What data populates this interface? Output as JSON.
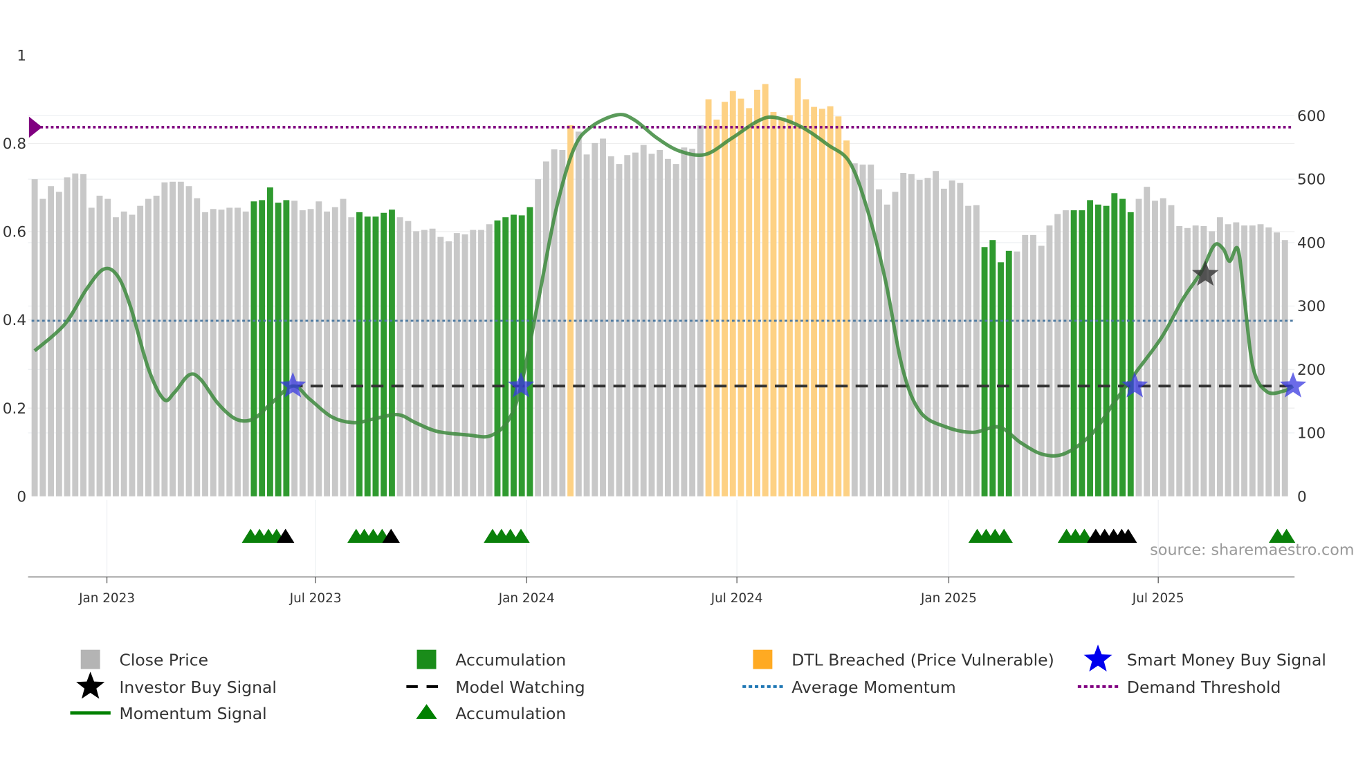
{
  "chart_data": {
    "type": "bar",
    "title": "",
    "source": "source: sharemaestro.com",
    "left_axis": {
      "ticks": [
        "0",
        "0.2",
        "0.4",
        "0.6",
        "0.8",
        "1"
      ],
      "values": [
        0,
        0.2,
        0.4,
        0.6,
        0.8,
        1
      ],
      "range": [
        0,
        1
      ]
    },
    "right_axis": {
      "ticks": [
        "0",
        "100",
        "200",
        "300",
        "400",
        "500",
        "600"
      ],
      "values": [
        0,
        100,
        200,
        300,
        400,
        500,
        600
      ],
      "range": [
        0,
        695
      ]
    },
    "x_ticks": [
      {
        "label": "Jan 2023",
        "week": 8.9
      },
      {
        "label": "Jul 2023",
        "week": 34.6
      },
      {
        "label": "Jan 2024",
        "week": 60.6
      },
      {
        "label": "Jul 2024",
        "week": 86.5
      },
      {
        "label": "Jan 2025",
        "week": 112.6
      },
      {
        "label": "Jul 2025",
        "week": 138.4
      }
    ],
    "close_price": [
      500,
      469,
      489,
      480,
      503,
      509,
      508,
      455,
      474,
      469,
      440,
      449,
      444,
      458,
      469,
      474,
      495,
      496,
      496,
      489,
      470,
      448,
      453,
      452,
      455,
      455,
      449,
      465,
      467,
      487,
      463,
      467,
      466,
      451,
      453,
      465,
      449,
      456,
      469,
      440,
      448,
      441,
      441,
      447,
      452,
      440,
      434,
      418,
      420,
      422,
      409,
      402,
      415,
      413,
      420,
      420,
      429,
      435,
      440,
      444,
      443,
      456,
      500,
      528,
      547,
      546,
      585,
      575,
      539,
      557,
      564,
      536,
      524,
      538,
      542,
      554,
      540,
      546,
      532,
      524,
      550,
      548,
      585,
      626,
      594,
      622,
      639,
      627,
      612,
      641,
      650,
      606,
      597,
      601,
      659,
      626,
      614,
      611,
      615,
      599,
      561,
      525,
      523,
      523,
      484,
      460,
      480,
      510,
      508,
      499,
      502,
      513,
      485,
      498,
      494,
      458,
      459,
      393,
      404,
      369,
      387,
      386,
      412,
      412,
      395,
      427,
      445,
      451,
      451,
      451,
      467,
      460,
      458,
      478,
      469,
      448,
      469,
      488,
      466,
      470,
      459,
      426,
      423,
      427,
      426,
      418,
      440,
      429,
      432,
      427,
      427,
      429,
      424,
      416,
      404
    ],
    "bar_status": "gggggggggggggggggggggggggggaaaaaggggggggaaaaaggggggggggggaaaaaggggoggggggggggggggggooooooooooooooooooggggggggggggggggaaaagggggggaaaaaaaagggggggggggggggggggaag",
    "status_colors": {
      "g": "#c8c8c8",
      "a": "#2f9a2f",
      "o": "#fdd184"
    },
    "momentum": [
      [
        0,
        0.33
      ],
      [
        3.7,
        0.39
      ],
      [
        6.4,
        0.47
      ],
      [
        8.5,
        0.515
      ],
      [
        10.2,
        0.5
      ],
      [
        11.8,
        0.43
      ],
      [
        14,
        0.29
      ],
      [
        15.9,
        0.22
      ],
      [
        17.2,
        0.235
      ],
      [
        19,
        0.275
      ],
      [
        20.4,
        0.266
      ],
      [
        22.6,
        0.21
      ],
      [
        24.8,
        0.175
      ],
      [
        26.9,
        0.175
      ],
      [
        29.1,
        0.21
      ],
      [
        31.8,
        0.25
      ],
      [
        33.9,
        0.22
      ],
      [
        36.6,
        0.18
      ],
      [
        39.4,
        0.167
      ],
      [
        42.1,
        0.177
      ],
      [
        44.8,
        0.185
      ],
      [
        46.9,
        0.167
      ],
      [
        49.6,
        0.147
      ],
      [
        53.4,
        0.139
      ],
      [
        56.1,
        0.137
      ],
      [
        58.3,
        0.171
      ],
      [
        59.9,
        0.25
      ],
      [
        62.1,
        0.45
      ],
      [
        64.2,
        0.648
      ],
      [
        66.4,
        0.787
      ],
      [
        68.5,
        0.837
      ],
      [
        71.8,
        0.865
      ],
      [
        73.9,
        0.853
      ],
      [
        76.6,
        0.813
      ],
      [
        79.4,
        0.783
      ],
      [
        82.6,
        0.775
      ],
      [
        85.8,
        0.811
      ],
      [
        89.1,
        0.851
      ],
      [
        91.2,
        0.859
      ],
      [
        94.5,
        0.837
      ],
      [
        97.7,
        0.797
      ],
      [
        100.4,
        0.757
      ],
      [
        102.6,
        0.648
      ],
      [
        104.8,
        0.489
      ],
      [
        106.9,
        0.29
      ],
      [
        109.1,
        0.191
      ],
      [
        112.3,
        0.157
      ],
      [
        115.6,
        0.145
      ],
      [
        118.8,
        0.157
      ],
      [
        121.5,
        0.121
      ],
      [
        124.2,
        0.095
      ],
      [
        126.9,
        0.097
      ],
      [
        130.2,
        0.141
      ],
      [
        132.9,
        0.211
      ],
      [
        135.6,
        0.28
      ],
      [
        138.8,
        0.36
      ],
      [
        141.5,
        0.449
      ],
      [
        143.7,
        0.509
      ],
      [
        145.3,
        0.569
      ],
      [
        146.4,
        0.561
      ],
      [
        147.2,
        0.533
      ],
      [
        148.2,
        0.561
      ],
      [
        149,
        0.449
      ],
      [
        150.1,
        0.29
      ],
      [
        151.8,
        0.237
      ],
      [
        153.9,
        0.239
      ],
      [
        155,
        0.25
      ]
    ],
    "demand_threshold": 0.837,
    "average_momentum": 0.398,
    "model_watching": {
      "value": 0.25,
      "from_week": 31.5,
      "to_week": 155
    },
    "smart_money_buy": [
      [
        31.8,
        0.25
      ],
      [
        59.9,
        0.25
      ],
      [
        135.5,
        0.25
      ],
      [
        155,
        0.25
      ]
    ],
    "investor_buy": [
      [
        144.2,
        0.503
      ]
    ],
    "accumulation_triangles": [
      26.6,
      27.7,
      28.8,
      29.8,
      39.6,
      40.6,
      41.7,
      42.8,
      56.4,
      57.5,
      58.6,
      59.9,
      116.1,
      117.2,
      118.3,
      119.4,
      127.1,
      128.2,
      129.3,
      153.1,
      154.2
    ],
    "investor_triangles": [
      30.9,
      43.9,
      130.7,
      131.8,
      132.9,
      133.9,
      134.7
    ],
    "legend": [
      {
        "label": "Close Price",
        "icon": "square",
        "color": "#b4b4b4"
      },
      {
        "label": "Accumulation",
        "icon": "square",
        "color": "#1a8c1a"
      },
      {
        "label": "DTL Breached (Price Vulnerable)",
        "icon": "square",
        "color": "#ffaa22"
      },
      {
        "label": "Smart Money Buy Signal",
        "icon": "star",
        "color": "#0000ee"
      },
      {
        "label": "Investor Buy Signal",
        "icon": "star",
        "color": "#000000"
      },
      {
        "label": "Model Watching",
        "icon": "dash",
        "color": "#000000"
      },
      {
        "label": "Average Momentum",
        "icon": "dot",
        "color": "#1f77b4"
      },
      {
        "label": "Demand Threshold",
        "icon": "dot",
        "color": "#800080"
      },
      {
        "label": "Momentum Signal",
        "icon": "line",
        "color": "#008000"
      },
      {
        "label": "Accumulation",
        "icon": "triangle",
        "color": "#008000"
      }
    ]
  }
}
